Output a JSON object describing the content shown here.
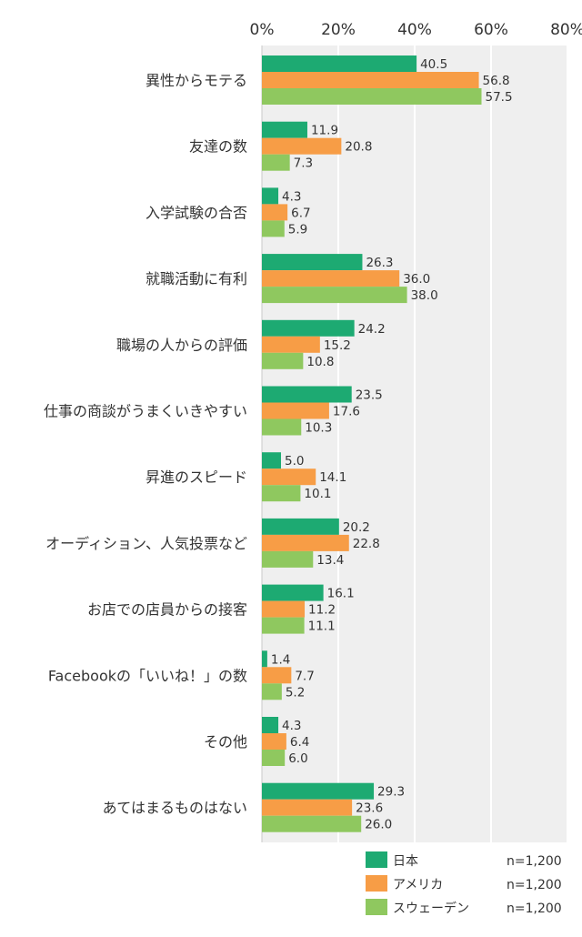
{
  "chart_data": {
    "type": "bar",
    "orientation": "horizontal",
    "categories": [
      "異性からモテる",
      "友達の数",
      "入学試験の合否",
      "就職活動に有利",
      "職場の人からの評価",
      "仕事の商談がうまくいきやすい",
      "昇進のスピード",
      "オーディション、人気投票など",
      "お店での店員からの接客",
      "Facebookの「いいね！」の数",
      "その他",
      "あてはまるものはない"
    ],
    "series": [
      {
        "name": "日本",
        "n_label": "n=1,200",
        "color": "#1daa72",
        "values": [
          40.5,
          11.9,
          4.3,
          26.3,
          24.2,
          23.5,
          5.0,
          20.2,
          16.1,
          1.4,
          4.3,
          29.3
        ]
      },
      {
        "name": "アメリカ",
        "n_label": "n=1,200",
        "color": "#f79d46",
        "values": [
          56.8,
          20.8,
          6.7,
          36.0,
          15.2,
          17.6,
          14.1,
          22.8,
          11.2,
          7.7,
          6.4,
          23.6
        ]
      },
      {
        "name": "スウェーデン",
        "n_label": "n=1,200",
        "color": "#8fc85f",
        "values": [
          57.5,
          7.3,
          5.9,
          38.0,
          10.8,
          10.3,
          10.1,
          13.4,
          11.1,
          5.2,
          6.0,
          26.0
        ]
      }
    ],
    "xlim": [
      0,
      80
    ],
    "xticks": [
      "0%",
      "20%",
      "40%",
      "60%",
      "80%"
    ],
    "xtick_values": [
      0,
      20,
      40,
      60,
      80
    ],
    "grid": true,
    "legend_position": "bottom-right",
    "background_color": "#efefef"
  }
}
